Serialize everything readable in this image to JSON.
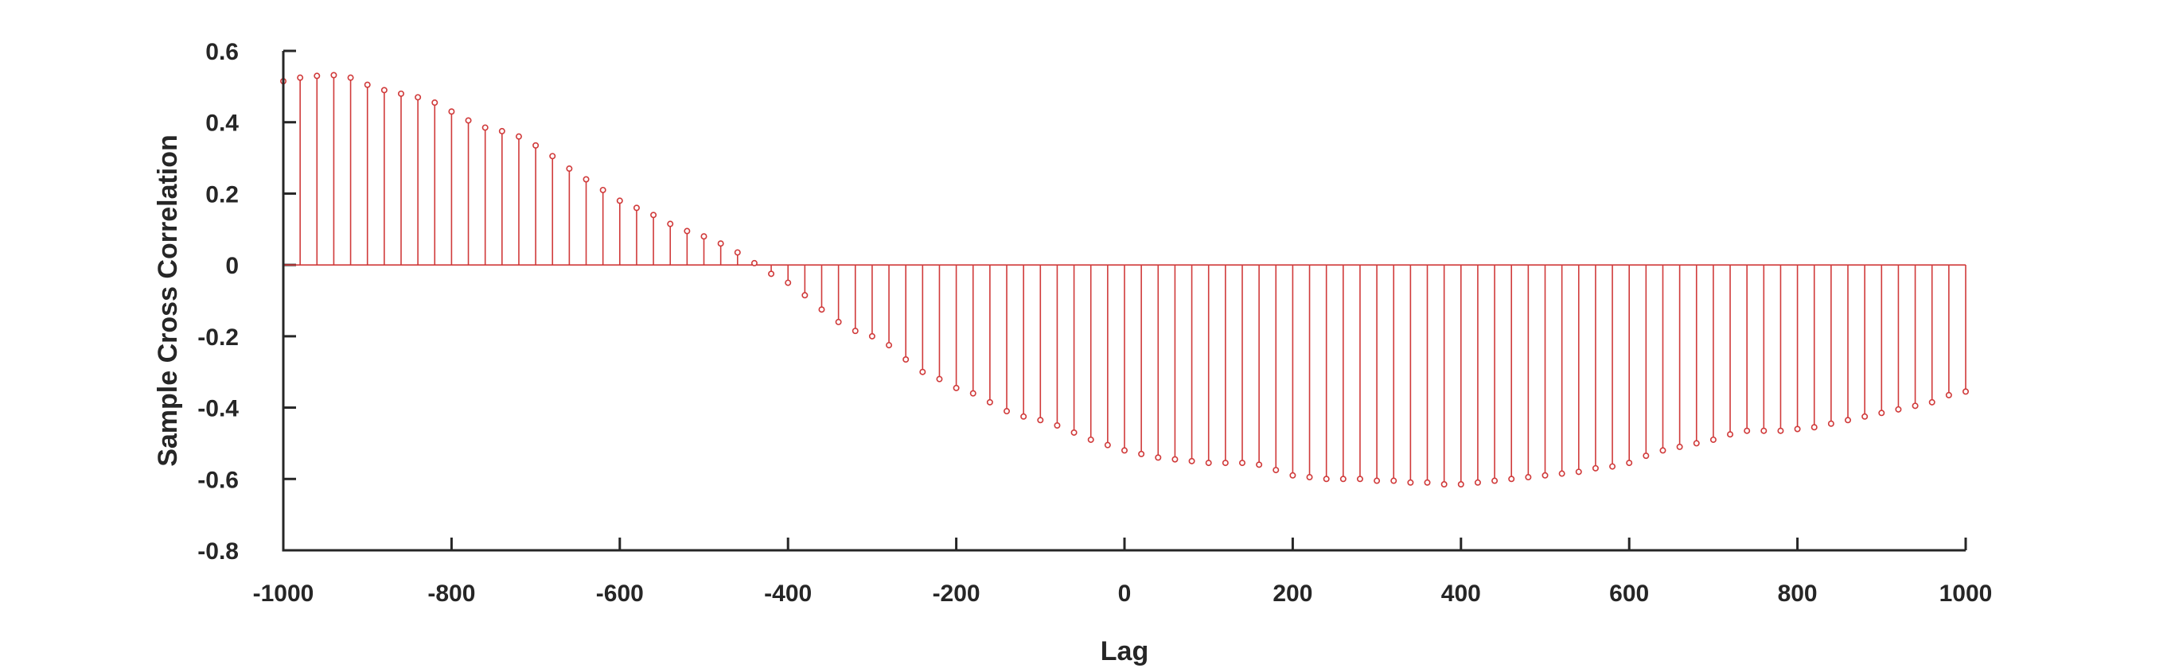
{
  "chart_data": {
    "type": "stem",
    "xlabel": "Lag",
    "ylabel": "Sample Cross Correlation",
    "xlim": [
      -1000,
      1000
    ],
    "ylim": [
      -0.8,
      0.6
    ],
    "xticks": [
      -1000,
      -800,
      -600,
      -400,
      -200,
      0,
      200,
      400,
      600,
      800,
      1000
    ],
    "xtick_labels": [
      "-1000",
      "-800",
      "-600",
      "-400",
      "-200",
      "0",
      "200",
      "400",
      "600",
      "800",
      "1000"
    ],
    "yticks": [
      0.6,
      0.4,
      0.2,
      0,
      -0.2,
      -0.4,
      -0.6,
      -0.8
    ],
    "ytick_labels": [
      "0.6",
      "0.4",
      "0.2",
      "0",
      "-0.2",
      "-0.4",
      "-0.6",
      "-0.8"
    ],
    "grid": false,
    "color": "#d03a3a",
    "x": [
      -1000,
      -980,
      -960,
      -940,
      -920,
      -900,
      -880,
      -860,
      -840,
      -820,
      -800,
      -780,
      -760,
      -740,
      -720,
      -700,
      -680,
      -660,
      -640,
      -620,
      -600,
      -580,
      -560,
      -540,
      -520,
      -500,
      -480,
      -460,
      -440,
      -420,
      -400,
      -380,
      -360,
      -340,
      -320,
      -300,
      -280,
      -260,
      -240,
      -220,
      -200,
      -180,
      -160,
      -140,
      -120,
      -100,
      -80,
      -60,
      -40,
      -20,
      0,
      20,
      40,
      60,
      80,
      100,
      120,
      140,
      160,
      180,
      200,
      220,
      240,
      260,
      280,
      300,
      320,
      340,
      360,
      380,
      400,
      420,
      440,
      460,
      480,
      500,
      520,
      540,
      560,
      580,
      600,
      620,
      640,
      660,
      680,
      700,
      720,
      740,
      760,
      780,
      800,
      820,
      840,
      860,
      880,
      900,
      920,
      940,
      960,
      980,
      1000
    ],
    "values": [
      0.515,
      0.525,
      0.53,
      0.532,
      0.525,
      0.505,
      0.49,
      0.48,
      0.47,
      0.455,
      0.43,
      0.405,
      0.385,
      0.375,
      0.36,
      0.335,
      0.305,
      0.27,
      0.24,
      0.21,
      0.18,
      0.16,
      0.14,
      0.115,
      0.095,
      0.08,
      0.06,
      0.035,
      0.005,
      -0.025,
      -0.05,
      -0.085,
      -0.125,
      -0.16,
      -0.185,
      -0.2,
      -0.225,
      -0.265,
      -0.3,
      -0.32,
      -0.345,
      -0.36,
      -0.385,
      -0.41,
      -0.425,
      -0.435,
      -0.45,
      -0.47,
      -0.49,
      -0.505,
      -0.52,
      -0.53,
      -0.54,
      -0.545,
      -0.55,
      -0.555,
      -0.555,
      -0.555,
      -0.56,
      -0.575,
      -0.59,
      -0.595,
      -0.6,
      -0.6,
      -0.6,
      -0.605,
      -0.605,
      -0.61,
      -0.61,
      -0.615,
      -0.615,
      -0.61,
      -0.605,
      -0.6,
      -0.595,
      -0.59,
      -0.585,
      -0.58,
      -0.57,
      -0.565,
      -0.555,
      -0.535,
      -0.52,
      -0.51,
      -0.5,
      -0.49,
      -0.475,
      -0.465,
      -0.465,
      -0.465,
      -0.46,
      -0.455,
      -0.445,
      -0.435,
      -0.425,
      -0.415,
      -0.405,
      -0.395,
      -0.385,
      -0.365,
      -0.355
    ]
  }
}
